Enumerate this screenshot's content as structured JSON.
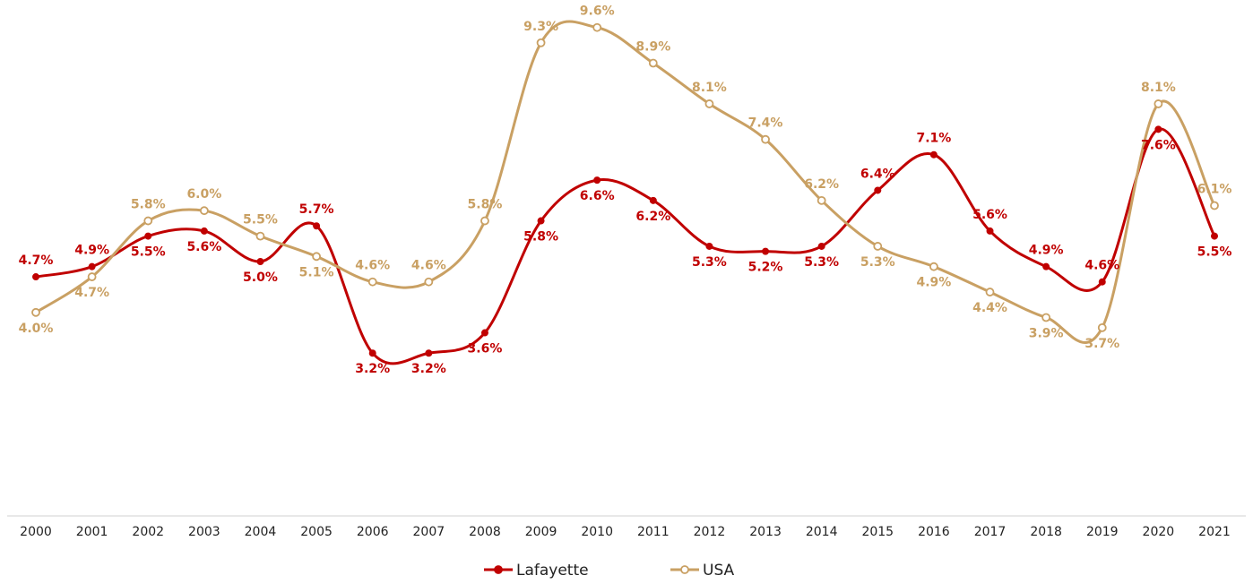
{
  "chart_data": {
    "type": "line",
    "categories": [
      "2000",
      "2001",
      "2002",
      "2003",
      "2004",
      "2005",
      "2006",
      "2007",
      "2008",
      "2009",
      "2010",
      "2011",
      "2012",
      "2013",
      "2014",
      "2015",
      "2016",
      "2017",
      "2018",
      "2019",
      "2020",
      "2021"
    ],
    "series": [
      {
        "name": "Lafayette",
        "color": "#c00000",
        "values": [
          4.7,
          4.9,
          5.5,
          5.6,
          5.0,
          5.7,
          3.2,
          3.2,
          3.6,
          5.8,
          6.6,
          6.2,
          5.3,
          5.2,
          5.3,
          6.4,
          7.1,
          5.6,
          4.9,
          4.6,
          7.6,
          5.5
        ],
        "value_labels": [
          "4.7%",
          "4.9%",
          "5.5%",
          "5.6%",
          "5.0%",
          "5.7%",
          "3.2%",
          "3.2%",
          "3.6%",
          "5.8%",
          "6.6%",
          "6.2%",
          "5.3%",
          "5.2%",
          "5.3%",
          "6.4%",
          "7.1%",
          "5.6%",
          "4.9%",
          "4.6%",
          "7.6%",
          "5.5%"
        ]
      },
      {
        "name": "USA",
        "color": "#c9a063",
        "values": [
          4.0,
          4.7,
          5.8,
          6.0,
          5.5,
          5.1,
          4.6,
          4.6,
          5.8,
          9.3,
          9.6,
          8.9,
          8.1,
          7.4,
          6.2,
          5.3,
          4.9,
          4.4,
          3.9,
          3.7,
          8.1,
          6.1
        ],
        "value_labels": [
          "4.0%",
          "4.7%",
          "5.8%",
          "6.0%",
          "5.5%",
          "5.1%",
          "4.6%",
          "4.6%",
          "5.8%",
          "9.3%",
          "9.6%",
          "8.9%",
          "8.1%",
          "7.4%",
          "6.2%",
          "5.3%",
          "4.9%",
          "4.4%",
          "3.9%",
          "3.7%",
          "8.1%",
          "6.1%"
        ]
      }
    ],
    "ylim": [
      0,
      10
    ]
  }
}
